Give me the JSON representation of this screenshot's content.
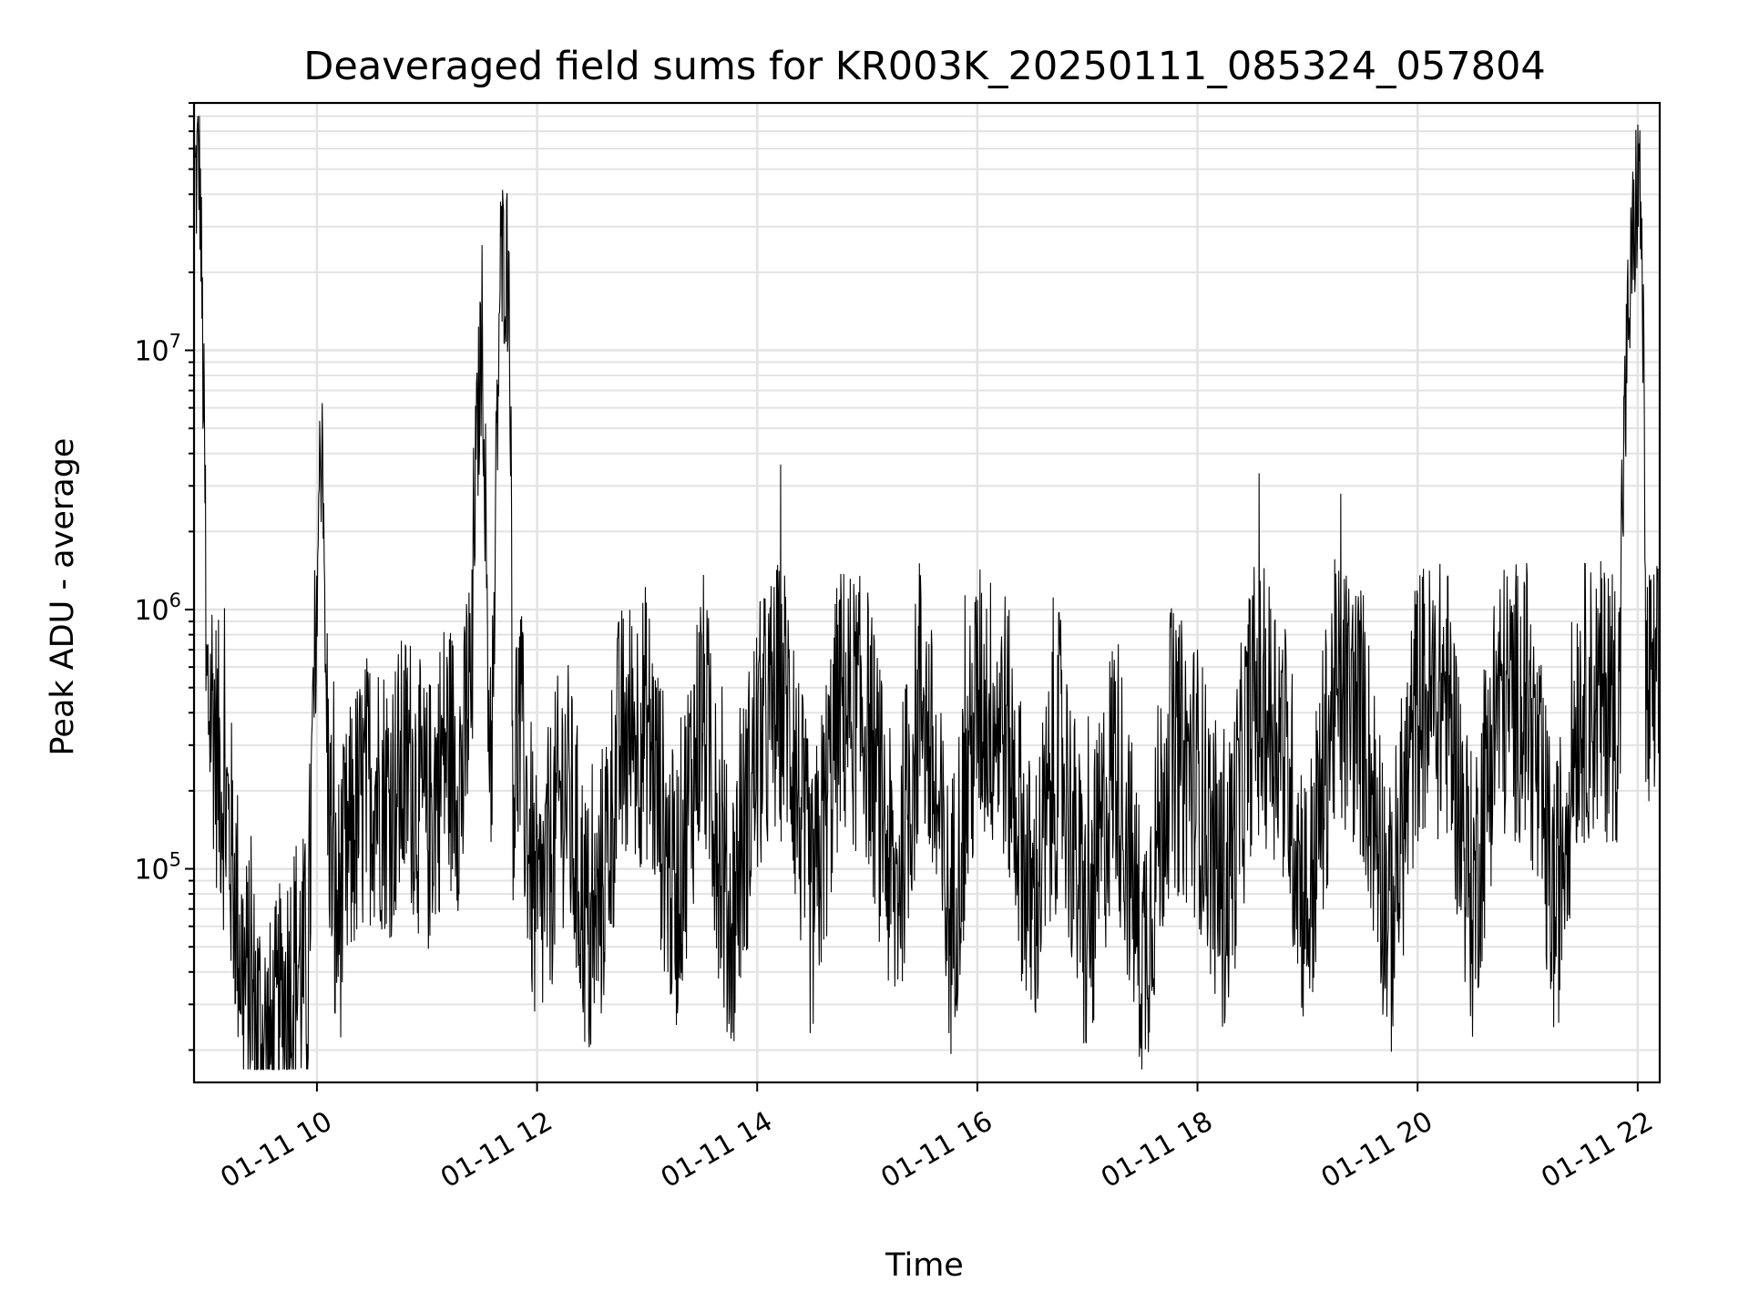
{
  "chart_data": {
    "type": "line",
    "title": "Deaveraged field sums for KR003K_20250111_085324_057804",
    "xlabel": "Time",
    "ylabel": "Peak ADU - average",
    "y_scale": "log",
    "ylim": [
      15000,
      90000000
    ],
    "xlim": [
      "2025-01-11 08:53",
      "2025-01-11 22:12"
    ],
    "x_ticks": [
      {
        "time": "2025-01-11 10:00",
        "label": "01-11 10"
      },
      {
        "time": "2025-01-11 12:00",
        "label": "01-11 12"
      },
      {
        "time": "2025-01-11 14:00",
        "label": "01-11 14"
      },
      {
        "time": "2025-01-11 16:00",
        "label": "01-11 16"
      },
      {
        "time": "2025-01-11 18:00",
        "label": "01-11 18"
      },
      {
        "time": "2025-01-11 20:00",
        "label": "01-11 20"
      },
      {
        "time": "2025-01-11 22:00",
        "label": "01-11 22"
      }
    ],
    "y_ticks": [
      {
        "value": 100000,
        "base": "10",
        "exp": "5"
      },
      {
        "value": 1000000,
        "base": "10",
        "exp": "6"
      },
      {
        "value": 10000000,
        "base": "10",
        "exp": "7"
      }
    ],
    "grid": true,
    "legend": "none",
    "colors": {
      "line": "#000000",
      "grid": "#e3e3e3",
      "axes": "#000000"
    },
    "series": [
      {
        "x": [
          "2025-01-11 08:53",
          "2025-01-11 08:56",
          "2025-01-11 09:00",
          "2025-01-11 09:05",
          "2025-01-11 09:10",
          "2025-01-11 09:15",
          "2025-01-11 09:20",
          "2025-01-11 09:25",
          "2025-01-11 09:30",
          "2025-01-11 09:35",
          "2025-01-11 09:40",
          "2025-01-11 09:45",
          "2025-01-11 09:50",
          "2025-01-11 09:55",
          "2025-01-11 10:00",
          "2025-01-11 10:03",
          "2025-01-11 10:06",
          "2025-01-11 10:10",
          "2025-01-11 10:20",
          "2025-01-11 10:30",
          "2025-01-11 10:40",
          "2025-01-11 10:50",
          "2025-01-11 11:00",
          "2025-01-11 11:10",
          "2025-01-11 11:20",
          "2025-01-11 11:30",
          "2025-01-11 11:32",
          "2025-01-11 11:35",
          "2025-01-11 11:40",
          "2025-01-11 11:43",
          "2025-01-11 11:45",
          "2025-01-11 11:47",
          "2025-01-11 11:50",
          "2025-01-11 12:00",
          "2025-01-11 12:15",
          "2025-01-11 12:30",
          "2025-01-11 12:45",
          "2025-01-11 13:00",
          "2025-01-11 13:15",
          "2025-01-11 13:30",
          "2025-01-11 13:45",
          "2025-01-11 14:00",
          "2025-01-11 14:15",
          "2025-01-11 14:30",
          "2025-01-11 14:45",
          "2025-01-11 15:00",
          "2025-01-11 15:15",
          "2025-01-11 15:30",
          "2025-01-11 15:45",
          "2025-01-11 16:00",
          "2025-01-11 16:15",
          "2025-01-11 16:30",
          "2025-01-11 16:45",
          "2025-01-11 17:00",
          "2025-01-11 17:15",
          "2025-01-11 17:30",
          "2025-01-11 17:45",
          "2025-01-11 18:00",
          "2025-01-11 18:15",
          "2025-01-11 18:30",
          "2025-01-11 18:45",
          "2025-01-11 19:00",
          "2025-01-11 19:15",
          "2025-01-11 19:30",
          "2025-01-11 19:45",
          "2025-01-11 20:00",
          "2025-01-11 20:15",
          "2025-01-11 20:30",
          "2025-01-11 20:45",
          "2025-01-11 21:00",
          "2025-01-11 21:15",
          "2025-01-11 21:30",
          "2025-01-11 21:45",
          "2025-01-11 21:50",
          "2025-01-11 21:55",
          "2025-01-11 22:00",
          "2025-01-11 22:02",
          "2025-01-11 22:05",
          "2025-01-11 22:08",
          "2025-01-11 22:12"
        ],
        "y": [
          50000000,
          70000000,
          1200000,
          400000,
          250000,
          120000,
          50000,
          40000,
          30000,
          25000,
          35000,
          50000,
          60000,
          50000,
          2000000,
          7000000,
          300000,
          80000,
          200000,
          300000,
          250000,
          350000,
          200000,
          400000,
          300000,
          15000000,
          3000000,
          400000,
          25000000,
          28000000,
          22000000,
          300000,
          500000,
          80000,
          300000,
          60000,
          400000,
          500000,
          100000,
          600000,
          80000,
          400000,
          700000,
          90000,
          600000,
          500000,
          100000,
          700000,
          80000,
          600000,
          500000,
          90000,
          400000,
          70000,
          400000,
          60000,
          400000,
          300000,
          100000,
          600000,
          500000,
          90000,
          700000,
          500000,
          80000,
          600000,
          700000,
          100000,
          800000,
          600000,
          90000,
          900000,
          1200000,
          1400000,
          17000000,
          55000000,
          40000000,
          900000,
          800000,
          900000
        ]
      }
    ]
  }
}
